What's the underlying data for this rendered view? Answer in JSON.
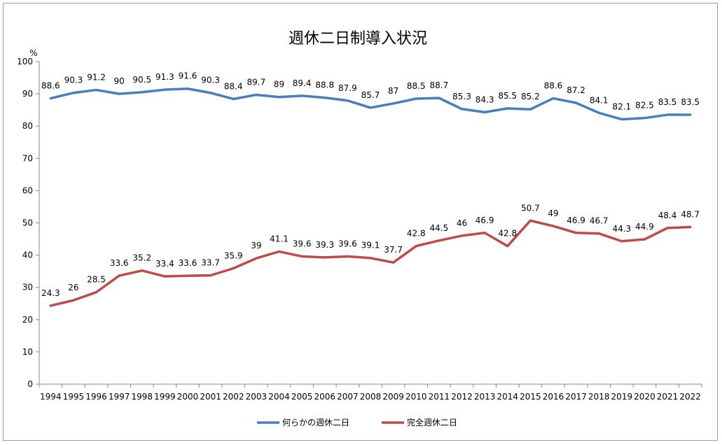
{
  "chart_data": {
    "type": "line",
    "title": "週休二日制導入状況",
    "ylabel": "%",
    "xlabel": "",
    "ylim": [
      0,
      100
    ],
    "yticks": [
      0,
      10,
      20,
      30,
      40,
      50,
      60,
      70,
      80,
      90,
      100
    ],
    "grid": false,
    "legend_position": "bottom",
    "categories": [
      "1994",
      "1995",
      "1996",
      "1997",
      "1998",
      "1999",
      "2000",
      "2001",
      "2002",
      "2003",
      "2004",
      "2005",
      "2006",
      "2007",
      "2008",
      "2009",
      "2010",
      "2011",
      "2012",
      "2013",
      "2014",
      "2015",
      "2016",
      "2017",
      "2018",
      "2019",
      "2020",
      "2021",
      "2022"
    ],
    "series": [
      {
        "name": "何らかの週休二日",
        "color": "#4a7ebb",
        "values": [
          88.6,
          90.3,
          91.2,
          90,
          90.5,
          91.3,
          91.6,
          90.3,
          88.4,
          89.7,
          89,
          89.4,
          88.8,
          87.9,
          85.7,
          87,
          88.5,
          88.7,
          85.3,
          84.3,
          85.5,
          85.2,
          88.6,
          87.2,
          84.1,
          82.1,
          82.5,
          83.5,
          83.5
        ]
      },
      {
        "name": "完全週休二日",
        "color": "#be4b48",
        "values": [
          24.3,
          26,
          28.5,
          33.6,
          35.2,
          33.4,
          33.6,
          33.7,
          35.9,
          39,
          41.1,
          39.6,
          39.3,
          39.6,
          39.1,
          37.7,
          42.8,
          44.5,
          46,
          46.9,
          42.8,
          50.7,
          49,
          46.9,
          46.7,
          44.3,
          44.9,
          48.4,
          48.7
        ]
      }
    ]
  }
}
